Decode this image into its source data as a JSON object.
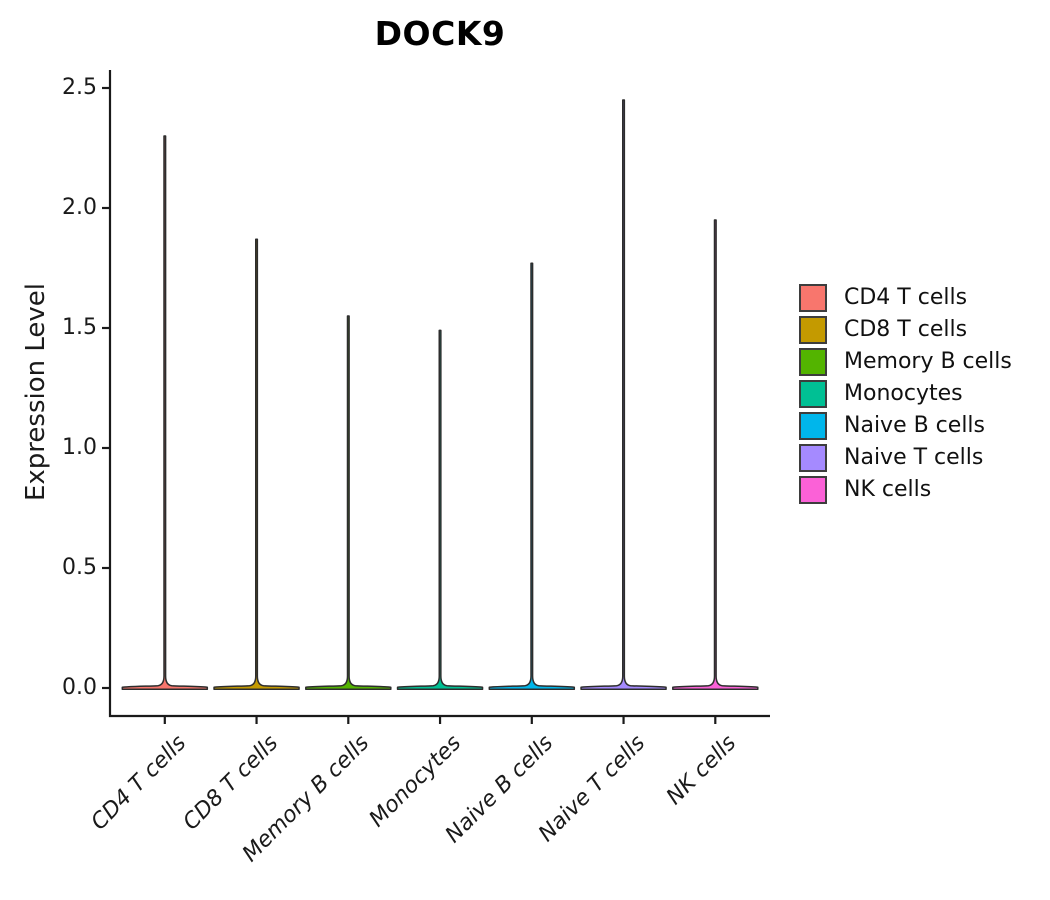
{
  "chart_data": {
    "type": "violin",
    "title": "DOCK9",
    "ylabel": "Expression Level",
    "categories": [
      "CD4 T cells",
      "CD8 T cells",
      "Memory B cells",
      "Monocytes",
      "Naive B cells",
      "Naive T cells",
      "NK cells"
    ],
    "series": [
      {
        "name": "CD4 T cells",
        "color": "#F8766D",
        "min": 0.0,
        "max": 2.3
      },
      {
        "name": "CD8 T cells",
        "color": "#C49A00",
        "min": 0.0,
        "max": 1.87
      },
      {
        "name": "Memory B cells",
        "color": "#53B400",
        "min": 0.0,
        "max": 1.55
      },
      {
        "name": "Monocytes",
        "color": "#00C094",
        "min": 0.0,
        "max": 1.49
      },
      {
        "name": "Naive B cells",
        "color": "#00B6EB",
        "min": 0.0,
        "max": 1.77
      },
      {
        "name": "Naive T cells",
        "color": "#A58AFF",
        "min": 0.0,
        "max": 2.45
      },
      {
        "name": "NK cells",
        "color": "#FB61D7",
        "min": 0.0,
        "max": 1.95
      }
    ],
    "ylim": [
      0.0,
      2.5
    ],
    "yticks": [
      "0.0",
      "0.5",
      "1.0",
      "1.5",
      "2.0",
      "2.5"
    ],
    "grid": false,
    "legend_position": "right",
    "axis_color": "#1a1a1a",
    "violin_outline_color": "#2d2d2d",
    "shape_note": "each violin is a thin spike from 0 up to max with a wide flat base at 0"
  }
}
